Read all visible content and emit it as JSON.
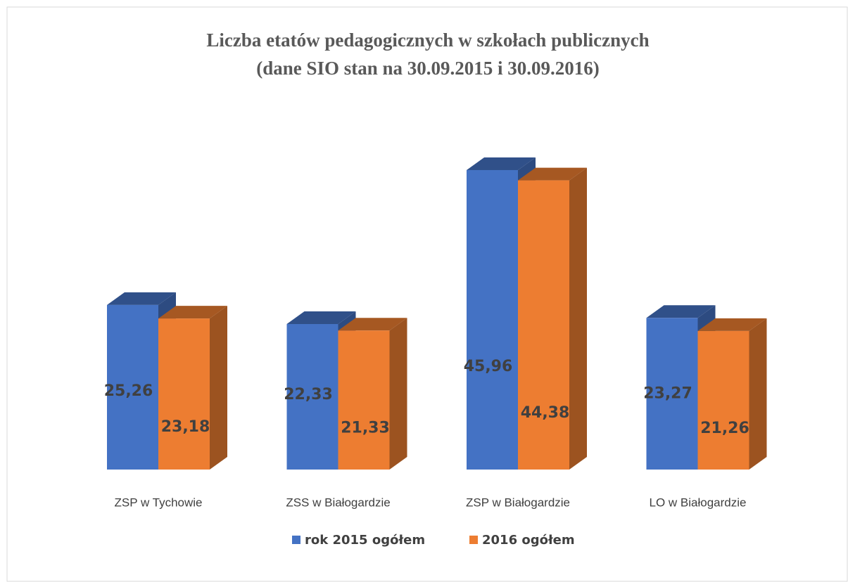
{
  "chart_data": {
    "type": "bar3d",
    "title": "Liczba etatów pedagogicznych w szkołach publicznych",
    "subtitle": "(dane SIO  stan na 30.09.2015 i 30.09.2016)",
    "categories": [
      "ZSP w Tychowie",
      "ZSS w Białogardzie",
      "ZSP w Białogardzie",
      "LO w Białogardzie"
    ],
    "series": [
      {
        "name": "rok 2015 ogółem",
        "color": "#4472c4",
        "values": [
          25.26,
          22.33,
          45.96,
          23.27
        ],
        "value_labels": [
          "25,26",
          "22,33",
          "45,96",
          "23,27"
        ]
      },
      {
        "name": "2016 ogółem",
        "color": "#ed7d31",
        "values": [
          23.18,
          21.33,
          44.38,
          21.26
        ],
        "value_labels": [
          "23,18",
          "21,33",
          "44,38",
          "21,26"
        ]
      }
    ],
    "legend": "bottom"
  }
}
